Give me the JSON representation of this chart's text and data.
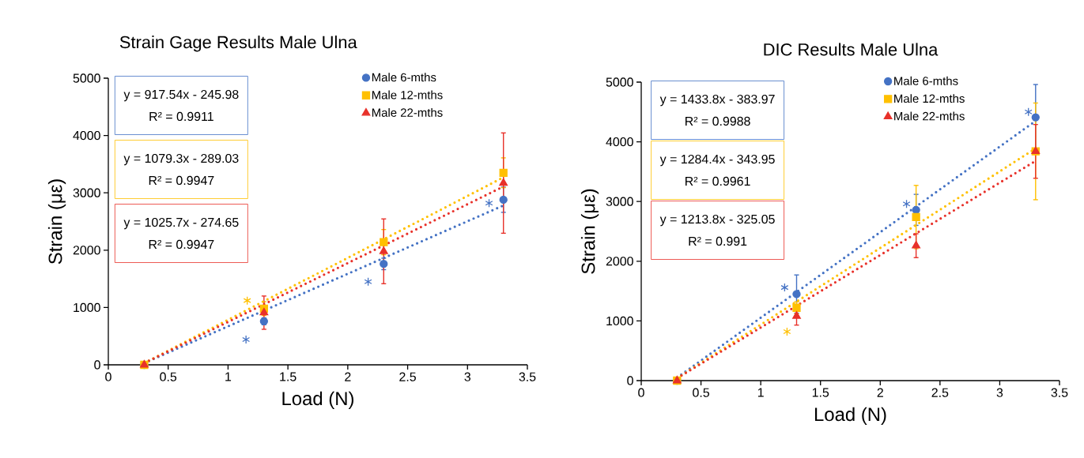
{
  "chart_data": [
    {
      "type": "scatter",
      "title": "Strain Gage Results Male Ulna",
      "xlabel": "Load (N)",
      "ylabel": "Strain (με)",
      "xlim": [
        0,
        3.5
      ],
      "ylim": [
        0,
        5000
      ],
      "xticks": [
        0,
        0.5,
        1,
        1.5,
        2,
        2.5,
        3,
        3.5
      ],
      "yticks": [
        0,
        1000,
        2000,
        3000,
        4000,
        5000
      ],
      "legend": "top right",
      "annotations": [
        "y = 917.54x - 245.98",
        "R² = 0.9911",
        "y = 1079.3x - 289.03",
        "R² = 0.9947",
        "y = 1025.7x - 274.65",
        "R² = 0.9947"
      ],
      "series": [
        {
          "name": "Male 6-mths",
          "type": "scatter",
          "color": "#4472c4",
          "marker": "circle",
          "x": [
            0.3,
            1.3,
            2.3,
            3.3
          ],
          "values": [
            0,
            760,
            1760,
            2880
          ],
          "errors": [
            null,
            60,
            100,
            220
          ]
        },
        {
          "name": "Male 12-mths",
          "type": "scatter",
          "color": "#ffc000",
          "marker": "square",
          "x": [
            0.3,
            1.3,
            2.3,
            3.3
          ],
          "values": [
            0,
            980,
            2140,
            3350
          ],
          "errors": [
            null,
            120,
            220,
            260
          ]
        },
        {
          "name": "Male 22-mths",
          "type": "scatter",
          "color": "#e8312a",
          "marker": "triangle",
          "x": [
            0.3,
            1.3,
            2.3,
            3.3
          ],
          "values": [
            0,
            910,
            1980,
            3170
          ],
          "errors": [
            null,
            290,
            565,
            875
          ]
        },
        {
          "type": "line",
          "color": "#4472c4",
          "line_style": "dotted",
          "marker": "none",
          "x": [
            0.3,
            3.3
          ],
          "values": [
            30,
            2780
          ]
        },
        {
          "type": "line",
          "color": "#ffc000",
          "line_style": "dotted",
          "marker": "none",
          "x": [
            0.3,
            3.3
          ],
          "values": [
            30,
            3270
          ]
        },
        {
          "type": "line",
          "color": "#e8312a",
          "line_style": "dotted",
          "marker": "none",
          "x": [
            0.3,
            3.3
          ],
          "values": [
            30,
            3110
          ]
        },
        {
          "type": "scatter",
          "color": "#4472c4",
          "marker": "cross",
          "x": [
            1.15,
            2.17,
            3.18
          ],
          "values": [
            440,
            1450,
            2820
          ]
        },
        {
          "type": "scatter",
          "color": "#ffc000",
          "marker": "cross",
          "x": [
            1.16
          ],
          "values": [
            1120
          ]
        }
      ]
    },
    {
      "type": "scatter",
      "title": "DIC Results Male Ulna",
      "xlabel": "Load (N)",
      "ylabel": "Strain (με)",
      "xlim": [
        0,
        3.5
      ],
      "ylim": [
        0,
        5000
      ],
      "xticks": [
        0,
        0.5,
        1,
        1.5,
        2,
        2.5,
        3,
        3.5
      ],
      "yticks": [
        0,
        1000,
        2000,
        3000,
        4000,
        5000
      ],
      "legend": "top right",
      "annotations": [
        "y = 1433.8x - 383.97",
        "R² = 0.9988",
        "y = 1284.4x - 343.95",
        "R² = 0.9961",
        "y = 1213.8x - 325.05",
        "R² = 0.991"
      ],
      "series": [
        {
          "name": "Male 6-mths",
          "type": "scatter",
          "color": "#4472c4",
          "marker": "circle",
          "x": [
            0.3,
            1.3,
            2.3,
            3.3
          ],
          "values": [
            0,
            1450,
            2860,
            4410
          ],
          "errors": [
            null,
            320,
            260,
            550
          ]
        },
        {
          "name": "Male 12-mths",
          "type": "scatter",
          "color": "#ffc000",
          "marker": "square",
          "x": [
            0.3,
            1.3,
            2.3,
            3.3
          ],
          "values": [
            0,
            1220,
            2740,
            3840
          ],
          "errors": [
            null,
            100,
            530,
            810
          ]
        },
        {
          "name": "Male 22-mths",
          "type": "scatter",
          "color": "#e8312a",
          "marker": "triangle",
          "x": [
            0.3,
            1.3,
            2.3,
            3.3
          ],
          "values": [
            0,
            1080,
            2260,
            3840
          ],
          "errors": [
            null,
            150,
            200,
            450
          ]
        },
        {
          "type": "line",
          "color": "#4472c4",
          "line_style": "dotted",
          "marker": "none",
          "x": [
            0.3,
            3.3
          ],
          "values": [
            50,
            4350
          ]
        },
        {
          "type": "line",
          "color": "#ffc000",
          "line_style": "dotted",
          "marker": "none",
          "x": [
            0.3,
            3.3
          ],
          "values": [
            40,
            3890
          ]
        },
        {
          "type": "line",
          "color": "#e8312a",
          "line_style": "dotted",
          "marker": "none",
          "x": [
            0.3,
            3.3
          ],
          "values": [
            40,
            3680
          ]
        },
        {
          "type": "scatter",
          "color": "#4472c4",
          "marker": "cross",
          "x": [
            1.2,
            2.22,
            3.24
          ],
          "values": [
            1560,
            2960,
            4500
          ]
        },
        {
          "type": "scatter",
          "color": "#ffc000",
          "marker": "cross",
          "x": [
            1.22
          ],
          "values": [
            820
          ]
        }
      ]
    }
  ]
}
